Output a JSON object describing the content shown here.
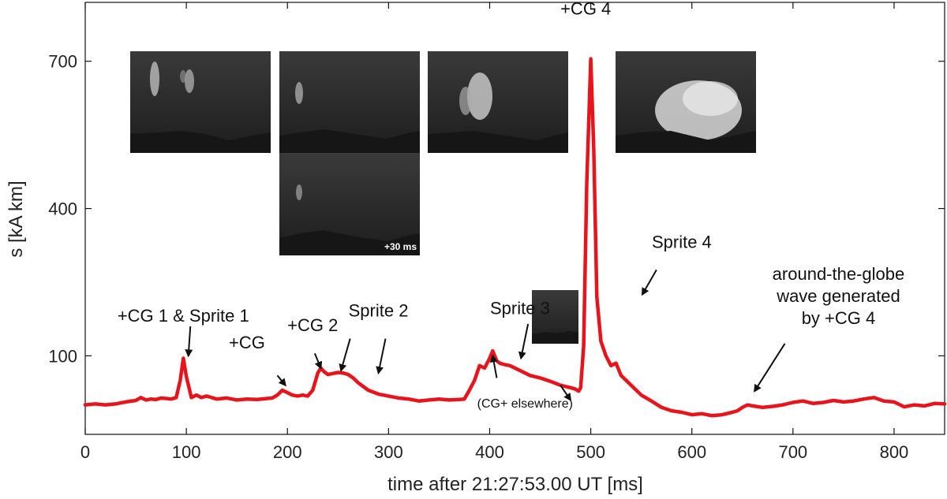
{
  "chart_data": {
    "type": "line",
    "xlabel": "time after 21:27:53.00 UT [ms]",
    "ylabel": "s  [kA km]",
    "xlim": [
      0,
      850
    ],
    "ylim": [
      -60,
      820
    ],
    "x_ticks": [
      0,
      100,
      200,
      300,
      400,
      500,
      600,
      700,
      800
    ],
    "y_ticks": [
      100,
      400,
      700
    ],
    "grid": false,
    "line_color": "#e8141c",
    "series": [
      {
        "x": [
          0,
          10,
          20,
          30,
          40,
          50,
          55,
          60,
          65,
          70,
          75,
          80,
          85,
          90,
          94,
          97,
          100,
          105,
          110,
          115,
          120,
          130,
          140,
          150,
          160,
          170,
          180,
          185,
          190,
          195,
          200,
          205,
          210,
          215,
          220,
          225,
          230,
          233,
          236,
          240,
          245,
          250,
          255,
          260,
          265,
          270,
          280,
          290,
          300,
          310,
          320,
          330,
          340,
          350,
          360,
          370,
          375,
          380,
          385,
          390,
          395,
          400,
          403,
          407,
          410,
          415,
          420,
          430,
          440,
          450,
          460,
          470,
          480,
          485,
          488,
          490,
          493,
          496,
          500,
          503,
          506,
          510,
          515,
          520,
          525,
          530,
          540,
          550,
          560,
          570,
          580,
          590,
          600,
          610,
          620,
          630,
          640,
          645,
          650,
          655,
          660,
          670,
          680,
          690,
          700,
          710,
          720,
          730,
          740,
          750,
          760,
          770,
          780,
          790,
          800,
          810,
          820,
          830,
          840,
          850
        ],
        "y": [
          0,
          2,
          0,
          2,
          6,
          9,
          15,
          10,
          12,
          11,
          14,
          13,
          12,
          15,
          50,
          95,
          58,
          15,
          20,
          15,
          18,
          12,
          14,
          10,
          12,
          11,
          13,
          14,
          20,
          30,
          25,
          20,
          18,
          20,
          18,
          30,
          65,
          75,
          68,
          62,
          64,
          66,
          65,
          62,
          55,
          45,
          30,
          22,
          18,
          14,
          12,
          8,
          10,
          12,
          10,
          11,
          12,
          30,
          50,
          80,
          75,
          95,
          110,
          90,
          85,
          82,
          80,
          70,
          60,
          55,
          48,
          40,
          35,
          32,
          28,
          35,
          120,
          450,
          705,
          520,
          220,
          130,
          100,
          80,
          85,
          60,
          40,
          20,
          8,
          -5,
          -12,
          -15,
          -20,
          -18,
          -22,
          -20,
          -15,
          -12,
          -5,
          0,
          -2,
          -5,
          -3,
          0,
          5,
          8,
          3,
          5,
          9,
          6,
          8,
          12,
          15,
          8,
          6,
          -4,
          0,
          -2,
          3,
          2
        ]
      }
    ],
    "annotations": [
      {
        "text": "+CG 1 & Sprite 1",
        "x": 97,
        "y": 170
      },
      {
        "text": "+CG",
        "x": 160,
        "y": 115
      },
      {
        "text": "+CG 2",
        "x": 225,
        "y": 150
      },
      {
        "text": "Sprite 2",
        "x": 290,
        "y": 180
      },
      {
        "text": "Sprite 3",
        "x": 430,
        "y": 185
      },
      {
        "text": "Sprite 4",
        "x": 590,
        "y": 320
      },
      {
        "text": "+CG 4",
        "x": 495,
        "y": 795
      },
      {
        "text": "around-the-globe",
        "x": 745,
        "y": 255
      },
      {
        "text": "wave generated",
        "x": 745,
        "y": 210
      },
      {
        "text": "by +CG 4",
        "x": 745,
        "y": 165
      },
      {
        "text": "(CG+ elsewhere)",
        "x": 435,
        "y": -5
      }
    ],
    "arrows": [
      {
        "from": [
          104,
          160
        ],
        "to": [
          102,
          100
        ]
      },
      {
        "from": [
          190,
          60
        ],
        "to": [
          198,
          40
        ]
      },
      {
        "from": [
          227,
          105
        ],
        "to": [
          233,
          75
        ]
      },
      {
        "from": [
          262,
          135
        ],
        "to": [
          253,
          70
        ]
      },
      {
        "from": [
          297,
          135
        ],
        "to": [
          290,
          65
        ]
      },
      {
        "from": [
          438,
          165
        ],
        "to": [
          431,
          95
        ]
      },
      {
        "from": [
          407,
          55
        ],
        "to": [
          403,
          100
        ]
      },
      {
        "from": [
          470,
          40
        ],
        "to": [
          480,
          10
        ]
      },
      {
        "from": [
          565,
          275
        ],
        "to": [
          551,
          225
        ]
      },
      {
        "from": [
          692,
          125
        ],
        "to": [
          662,
          28
        ]
      }
    ],
    "inset_labels": [
      "+30 ms"
    ]
  }
}
